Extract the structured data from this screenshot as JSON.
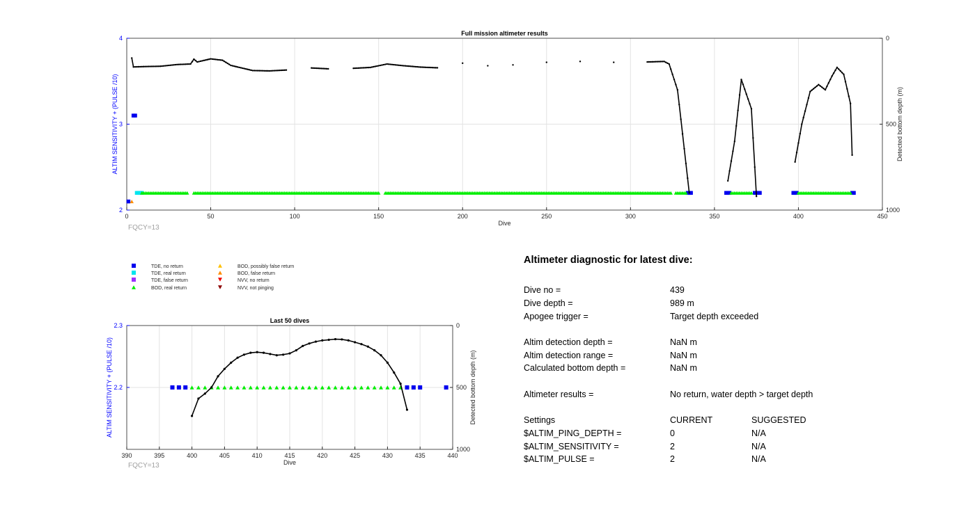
{
  "chart_data": [
    {
      "type": "line",
      "title": "Full mission altimeter results",
      "xlabel": "Dive",
      "ylabel": "ALTIM SENSITIVITY + (PULSE /10)",
      "y2label": "Detected bottom depth (m)",
      "xlim": [
        0,
        450
      ],
      "ylim": [
        2,
        4
      ],
      "y2lim": [
        1000,
        0
      ],
      "xticks": [
        "0",
        "50",
        "100",
        "150",
        "200",
        "250",
        "300",
        "350",
        "400",
        "450"
      ],
      "yticks": [
        "2",
        "3",
        "4"
      ],
      "y2ticks": [
        "0",
        "500",
        "1000"
      ],
      "grid": true,
      "annotation": "FQCY=13",
      "bottom_depth": [
        [
          3,
          115
        ],
        [
          4,
          167
        ],
        [
          10,
          165
        ],
        [
          20,
          163
        ],
        [
          30,
          153
        ],
        [
          38,
          150
        ],
        [
          40,
          122
        ],
        [
          42,
          138
        ],
        [
          50,
          120
        ],
        [
          57,
          128
        ],
        [
          62,
          158
        ],
        [
          65,
          165
        ],
        [
          75,
          188
        ],
        [
          85,
          190
        ],
        [
          95,
          185
        ],
        [
          110,
          173
        ],
        [
          120,
          178
        ],
        [
          135,
          175
        ],
        [
          145,
          170
        ],
        [
          155,
          150
        ],
        [
          165,
          160
        ],
        [
          175,
          168
        ],
        [
          185,
          172
        ],
        [
          200,
          145
        ],
        [
          215,
          160
        ],
        [
          230,
          155
        ],
        [
          250,
          140
        ],
        [
          270,
          135
        ],
        [
          290,
          140
        ],
        [
          310,
          138
        ],
        [
          320,
          135
        ],
        [
          323,
          150
        ],
        [
          328,
          300
        ],
        [
          335,
          900
        ],
        [
          358,
          830
        ],
        [
          362,
          600
        ],
        [
          366,
          240
        ],
        [
          372,
          410
        ],
        [
          375,
          920
        ],
        [
          398,
          720
        ],
        [
          402,
          500
        ],
        [
          407,
          310
        ],
        [
          412,
          270
        ],
        [
          416,
          300
        ],
        [
          420,
          220
        ],
        [
          423,
          170
        ],
        [
          427,
          210
        ],
        [
          431,
          380
        ],
        [
          432,
          680
        ]
      ],
      "markers": [
        {
          "type": "TDE, no return",
          "x": [
            1,
            4,
            5,
            334,
            335,
            336,
            357,
            358,
            359,
            374,
            375,
            376,
            377,
            397,
            398,
            399,
            432,
            433
          ],
          "y": [
            2.1,
            3.1,
            3.1,
            2.2,
            2.2,
            2.2,
            2.2,
            2.2,
            2.2,
            2.2,
            2.2,
            2.2,
            2.2,
            2.2,
            2.2,
            2.2,
            2.2,
            2.2
          ]
        },
        {
          "type": "TDE, real return",
          "x": [
            6,
            7,
            8,
            9
          ],
          "y": [
            2.2,
            2.2,
            2.2,
            2.2
          ]
        },
        {
          "type": "BOD, real return",
          "range": [
            [
              9,
              36
            ],
            [
              40,
              150
            ],
            [
              154,
              324
            ],
            [
              327,
              333
            ],
            [
              360,
              372
            ],
            [
              400,
              431
            ]
          ],
          "y": 2.2
        },
        {
          "type": "BOD, false return",
          "x": [
            3
          ],
          "y": [
            2.1
          ]
        }
      ]
    },
    {
      "type": "line",
      "title": "Last 50 dives",
      "xlabel": "Dive",
      "ylabel": "ALTIM SENSITIVITY + (PULSE /10)",
      "y2label": "Detected bottom depth (m)",
      "xlim": [
        390,
        440
      ],
      "ylim": [
        2.1,
        2.3
      ],
      "y2lim": [
        1000,
        0
      ],
      "xticks": [
        "390",
        "395",
        "400",
        "405",
        "410",
        "415",
        "420",
        "425",
        "430",
        "435",
        "440"
      ],
      "yticks": [
        "2.2",
        "2.3"
      ],
      "y2ticks": [
        "0",
        "500",
        "1000"
      ],
      "grid": true,
      "annotation": "FQCY=13",
      "bottom_depth": [
        [
          400,
          730
        ],
        [
          401,
          590
        ],
        [
          402,
          550
        ],
        [
          403,
          500
        ],
        [
          404,
          410
        ],
        [
          405,
          350
        ],
        [
          406,
          300
        ],
        [
          407,
          260
        ],
        [
          408,
          235
        ],
        [
          409,
          220
        ],
        [
          410,
          215
        ],
        [
          411,
          220
        ],
        [
          412,
          230
        ],
        [
          413,
          240
        ],
        [
          414,
          235
        ],
        [
          415,
          225
        ],
        [
          416,
          200
        ],
        [
          417,
          165
        ],
        [
          418,
          145
        ],
        [
          419,
          130
        ],
        [
          420,
          120
        ],
        [
          421,
          115
        ],
        [
          422,
          110
        ],
        [
          423,
          112
        ],
        [
          424,
          120
        ],
        [
          425,
          135
        ],
        [
          426,
          150
        ],
        [
          427,
          170
        ],
        [
          428,
          200
        ],
        [
          429,
          240
        ],
        [
          430,
          300
        ],
        [
          431,
          380
        ],
        [
          432,
          470
        ],
        [
          433,
          680
        ]
      ],
      "markers": [
        {
          "type": "TDE, no return",
          "x": [
            397,
            398,
            399,
            433,
            434,
            435,
            439
          ],
          "y": [
            2.2,
            2.2,
            2.2,
            2.2,
            2.2,
            2.2,
            2.2
          ]
        },
        {
          "type": "BOD, real return",
          "x": [
            400,
            401,
            402,
            403,
            404,
            405,
            406,
            407,
            408,
            409,
            410,
            411,
            412,
            413,
            414,
            415,
            416,
            417,
            418,
            419,
            420,
            421,
            422,
            423,
            424,
            425,
            426,
            427,
            428,
            429,
            430,
            431,
            432
          ],
          "y": 2.2
        }
      ]
    }
  ],
  "legend": [
    {
      "label": "TDE, no return",
      "shape": "square",
      "color": "#0000ee"
    },
    {
      "label": "TDE, real return",
      "shape": "square",
      "color": "#00e5ee"
    },
    {
      "label": "TDE, false return",
      "shape": "square",
      "color": "#9b30ff"
    },
    {
      "label": "BOD, real return",
      "shape": "triangle-up",
      "color": "#00ee00"
    },
    {
      "label": "BOD, possibly false return",
      "shape": "triangle-up",
      "color": "#ffc000"
    },
    {
      "label": "BOD, false return",
      "shape": "triangle-up",
      "color": "#ff8c00"
    },
    {
      "label": "NVV, no return",
      "shape": "triangle-down",
      "color": "#ee0000"
    },
    {
      "label": "NVV, not pinging",
      "shape": "triangle-down",
      "color": "#8b0000"
    }
  ],
  "diagnostic": {
    "title": "Altimeter diagnostic for latest dive:",
    "dive_no_label": "Dive no =",
    "dive_no_value": "439",
    "dive_depth_label": "Dive depth =",
    "dive_depth_value": "989 m",
    "apogee_label": "Apogee trigger =",
    "apogee_value": "Target depth exceeded",
    "altim_det_depth_label": "Altim detection depth =",
    "altim_det_depth_value": "NaN m",
    "altim_det_range_label": "Altim detection range =",
    "altim_det_range_value": "NaN m",
    "calc_bottom_label": "Calculated bottom depth =",
    "calc_bottom_value": "NaN m",
    "results_label": "Altimeter results =",
    "results_value": "No return, water depth > target depth",
    "settings_label": "Settings",
    "current_label": "CURRENT",
    "suggested_label": "SUGGESTED",
    "ping_depth_label": "$ALTIM_PING_DEPTH =",
    "ping_depth_current": "0",
    "ping_depth_suggested": "N/A",
    "sensitivity_label": "$ALTIM_SENSITIVITY =",
    "sensitivity_current": "2",
    "sensitivity_suggested": "N/A",
    "pulse_label": "$ALTIM_PULSE =",
    "pulse_current": "2",
    "pulse_suggested": "N/A"
  }
}
